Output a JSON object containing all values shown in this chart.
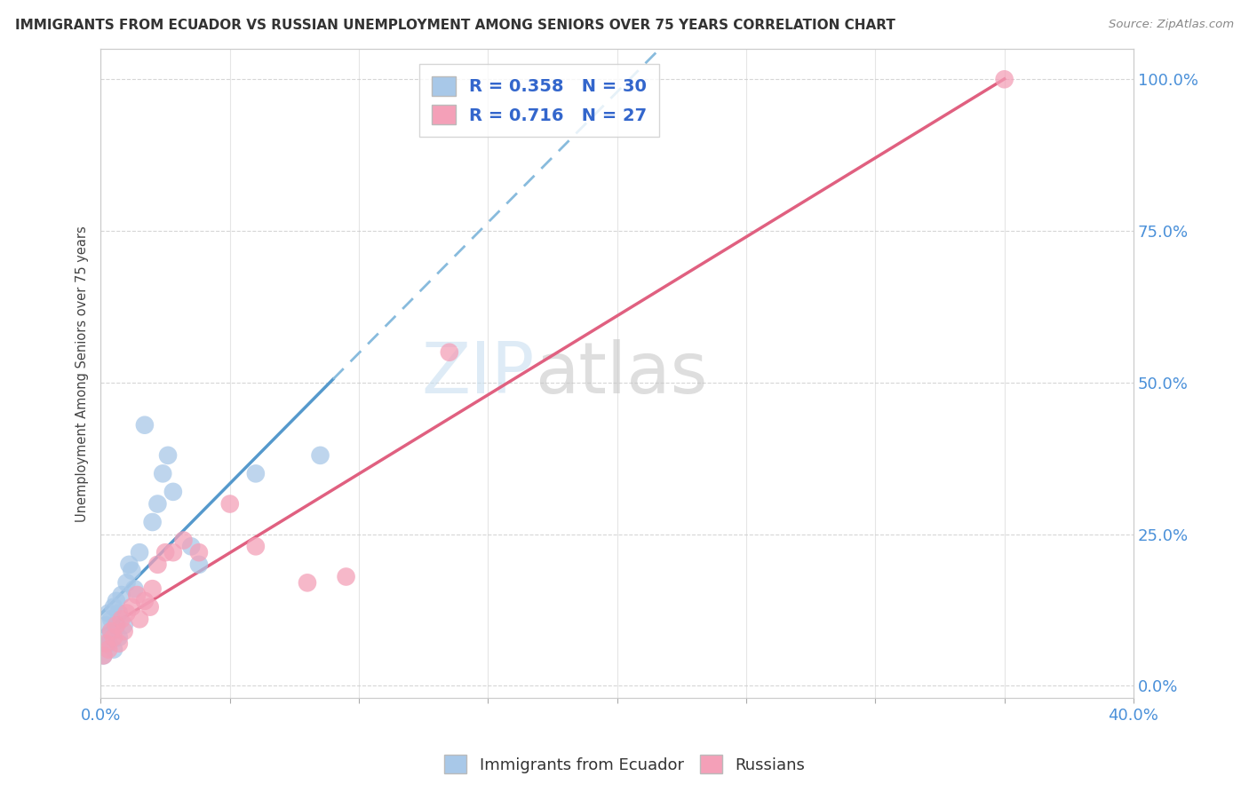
{
  "title": "IMMIGRANTS FROM ECUADOR VS RUSSIAN UNEMPLOYMENT AMONG SENIORS OVER 75 YEARS CORRELATION CHART",
  "source": "Source: ZipAtlas.com",
  "ylabel": "Unemployment Among Seniors over 75 years",
  "yticks": [
    "0.0%",
    "25.0%",
    "50.0%",
    "75.0%",
    "100.0%"
  ],
  "ytick_vals": [
    0.0,
    0.25,
    0.5,
    0.75,
    1.0
  ],
  "legend_label1": "Immigrants from Ecuador",
  "legend_label2": "Russians",
  "R1": 0.358,
  "N1": 30,
  "R2": 0.716,
  "N2": 27,
  "color1": "#a8c8e8",
  "color2": "#f4a0b8",
  "line1_solid_color": "#5599cc",
  "line1_dash_color": "#88bbdd",
  "line2_color": "#e06080",
  "watermark_zip": "ZIP",
  "watermark_atlas": "atlas",
  "xmax": 0.4,
  "ymin": -0.02,
  "ymax": 1.05,
  "ecuador_x": [
    0.001,
    0.002,
    0.002,
    0.003,
    0.003,
    0.004,
    0.004,
    0.005,
    0.005,
    0.006,
    0.006,
    0.007,
    0.007,
    0.008,
    0.009,
    0.01,
    0.011,
    0.012,
    0.013,
    0.015,
    0.017,
    0.02,
    0.022,
    0.024,
    0.026,
    0.028,
    0.035,
    0.038,
    0.06,
    0.085
  ],
  "ecuador_y": [
    0.05,
    0.08,
    0.1,
    0.07,
    0.12,
    0.09,
    0.11,
    0.06,
    0.13,
    0.1,
    0.14,
    0.08,
    0.12,
    0.15,
    0.1,
    0.17,
    0.2,
    0.19,
    0.16,
    0.22,
    0.43,
    0.27,
    0.3,
    0.35,
    0.38,
    0.32,
    0.23,
    0.2,
    0.35,
    0.38
  ],
  "russian_x": [
    0.001,
    0.002,
    0.003,
    0.004,
    0.005,
    0.006,
    0.007,
    0.008,
    0.009,
    0.01,
    0.012,
    0.014,
    0.015,
    0.017,
    0.019,
    0.02,
    0.022,
    0.025,
    0.028,
    0.032,
    0.038,
    0.05,
    0.06,
    0.08,
    0.095,
    0.135,
    0.35
  ],
  "russian_y": [
    0.05,
    0.07,
    0.06,
    0.09,
    0.08,
    0.1,
    0.07,
    0.11,
    0.09,
    0.12,
    0.13,
    0.15,
    0.11,
    0.14,
    0.13,
    0.16,
    0.2,
    0.22,
    0.22,
    0.24,
    0.22,
    0.3,
    0.23,
    0.17,
    0.18,
    0.55,
    1.0
  ]
}
